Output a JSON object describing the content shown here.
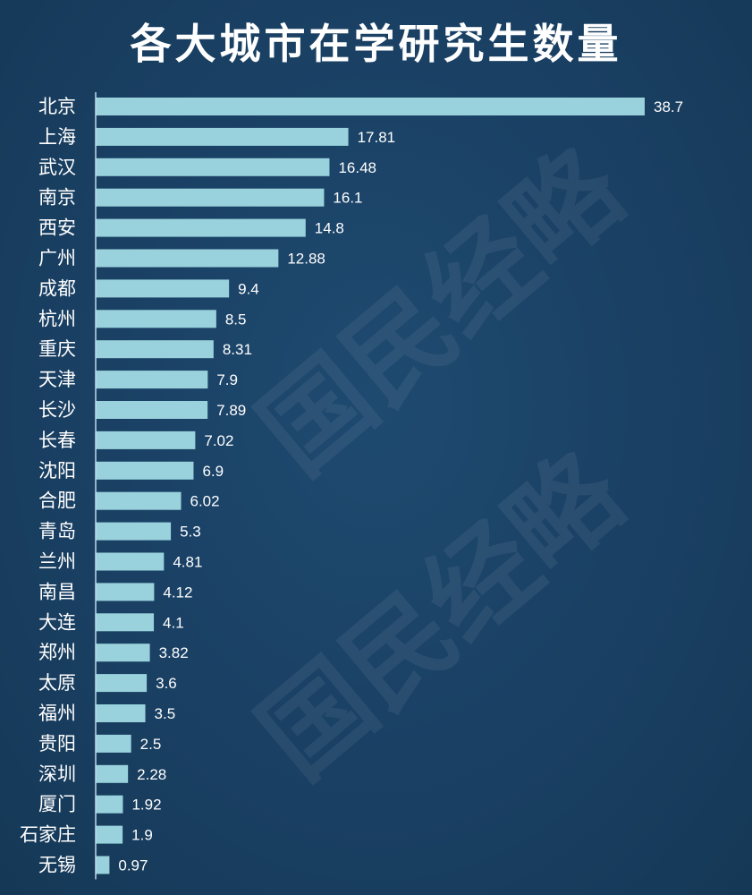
{
  "chart_data": {
    "type": "bar",
    "orientation": "horizontal",
    "title": "各大城市在学研究生数量",
    "categories": [
      "北京",
      "上海",
      "武汉",
      "南京",
      "西安",
      "广州",
      "成都",
      "杭州",
      "重庆",
      "天津",
      "长沙",
      "长春",
      "沈阳",
      "合肥",
      "青岛",
      "兰州",
      "南昌",
      "大连",
      "郑州",
      "太原",
      "福州",
      "贵阳",
      "深圳",
      "厦门",
      "石家庄",
      "无锡"
    ],
    "values": [
      38.7,
      17.81,
      16.48,
      16.1,
      14.8,
      12.88,
      9.4,
      8.5,
      8.31,
      7.9,
      7.89,
      7.02,
      6.9,
      6.02,
      5.3,
      4.81,
      4.12,
      4.1,
      3.82,
      3.6,
      3.5,
      2.5,
      2.28,
      1.92,
      1.9,
      0.97
    ],
    "value_labels": [
      "38.7",
      "17.81",
      "16.48",
      "16.1",
      "14.8",
      "12.88",
      "9.4",
      "8.5",
      "8.31",
      "7.9",
      "7.89",
      "7.02",
      "6.9",
      "6.02",
      "5.3",
      "4.81",
      "4.12",
      "4.1",
      "3.82",
      "3.6",
      "3.5",
      "2.5",
      "2.28",
      "1.92",
      "1.9",
      "0.97"
    ],
    "xlim": [
      0,
      38.7
    ],
    "grid": false,
    "bar_color": "#99d2dc",
    "background_color": "#1b4468"
  },
  "watermark": {
    "text": "国民经略"
  }
}
